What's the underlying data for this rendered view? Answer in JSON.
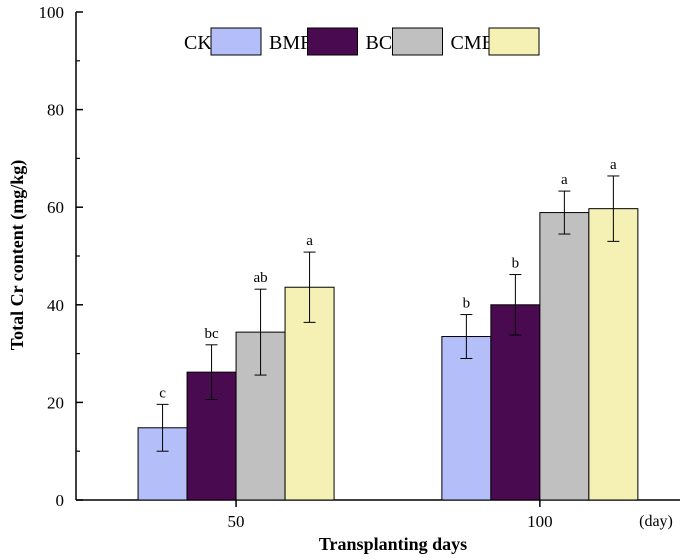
{
  "chart_data": {
    "type": "bar",
    "title": "",
    "xlabel": "Transplanting days",
    "ylabel": "Total Cr content (mg/kg)",
    "x_unit": "(day)",
    "categories": [
      "50",
      "100"
    ],
    "ylim": [
      0,
      100
    ],
    "yticks": [
      0,
      20,
      40,
      60,
      80,
      100
    ],
    "legend_position": "top",
    "series": [
      {
        "name": "CK",
        "color": "#b4bef8",
        "values": [
          14.8,
          33.5
        ],
        "errors": [
          4.8,
          4.5
        ],
        "labels": [
          "c",
          "b"
        ]
      },
      {
        "name": "BMF",
        "color": "#4a0a4f",
        "values": [
          26.2,
          40.0
        ],
        "errors": [
          5.6,
          6.2
        ],
        "labels": [
          "bc",
          "b"
        ]
      },
      {
        "name": "BC",
        "color": "#c0c0c0",
        "values": [
          34.4,
          58.9
        ],
        "errors": [
          8.8,
          4.4
        ],
        "labels": [
          "ab",
          "a"
        ]
      },
      {
        "name": "CMB",
        "color": "#f5f0b4",
        "values": [
          43.6,
          59.7
        ],
        "errors": [
          7.2,
          6.7
        ],
        "labels": [
          "a",
          "a"
        ]
      }
    ]
  }
}
